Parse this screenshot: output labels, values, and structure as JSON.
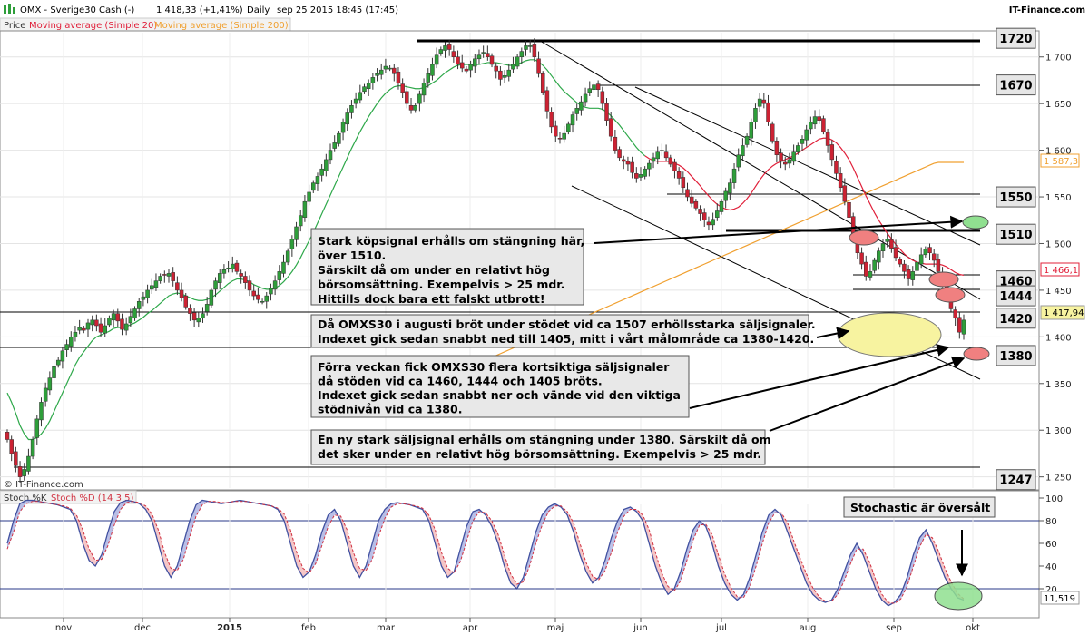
{
  "header": {
    "symbol": "OMX - Sverige30 Cash (-)",
    "quote": "1 418,33 (+1,41%)",
    "period": "Daily",
    "timestamp": "sep 25 2015 18:45 (17:45)",
    "brand": "IT-Finance.com"
  },
  "legend": {
    "price": "Price",
    "ma20": "Moving average (Simple 20)",
    "ma200": "Moving average (Simple 200)"
  },
  "stoch_legend": {
    "k": "Stoch %K",
    "d": "Stoch %D (14 3 5)"
  },
  "copyright": "© IT-Finance.com",
  "colors": {
    "up": "#2e9e3a",
    "down": "#cc2233",
    "ma20": "#e0203a",
    "ma200": "#f0a030",
    "stoch_k": "#4050a0",
    "stoch_d": "#d03040",
    "ellipse_yellow": "#f7f3a0",
    "ellipse_red": "#f08080",
    "ellipse_green": "#90e090"
  },
  "chart_data": {
    "type": "candlestick",
    "y_ticks": [
      "1 250",
      "1 300",
      "1 350",
      "1 400",
      "1 450",
      "1 500",
      "1 550",
      "1 600",
      "1 650",
      "1 700"
    ],
    "y_range": [
      1238,
      1726
    ],
    "x_months": [
      "nov",
      "dec",
      "2015",
      "feb",
      "mar",
      "apr",
      "maj",
      "jun",
      "jul",
      "aug",
      "sep",
      "okt"
    ],
    "last_price": "1 417,94",
    "ma200_value": "1 587,3",
    "ma20_value": "1 466,1",
    "levels": [
      {
        "value": 1720,
        "label": "1720"
      },
      {
        "value": 1670,
        "label": "1670"
      },
      {
        "value": 1550,
        "label": "1550"
      },
      {
        "value": 1510,
        "label": "1510"
      },
      {
        "value": 1460,
        "label": "1460"
      },
      {
        "value": 1444,
        "label": "1444"
      },
      {
        "value": 1420,
        "label": "1420"
      },
      {
        "value": 1380,
        "label": "1380"
      },
      {
        "value": 1247,
        "label": "1247"
      }
    ],
    "closes": [
      1290,
      1275,
      1262,
      1250,
      1258,
      1272,
      1290,
      1312,
      1330,
      1345,
      1356,
      1368,
      1375,
      1385,
      1392,
      1400,
      1405,
      1410,
      1407,
      1415,
      1418,
      1412,
      1405,
      1412,
      1420,
      1425,
      1417,
      1408,
      1414,
      1422,
      1430,
      1438,
      1443,
      1450,
      1455,
      1460,
      1465,
      1466,
      1468,
      1460,
      1450,
      1442,
      1432,
      1425,
      1418,
      1420,
      1425,
      1435,
      1450,
      1460,
      1468,
      1472,
      1474,
      1478,
      1470,
      1465,
      1458,
      1450,
      1444,
      1440,
      1438,
      1444,
      1452,
      1460,
      1470,
      1480,
      1492,
      1505,
      1518,
      1530,
      1545,
      1555,
      1565,
      1572,
      1580,
      1590,
      1600,
      1608,
      1618,
      1630,
      1640,
      1648,
      1655,
      1662,
      1668,
      1672,
      1678,
      1682,
      1686,
      1690,
      1688,
      1682,
      1672,
      1662,
      1650,
      1643,
      1648,
      1660,
      1672,
      1682,
      1692,
      1702,
      1708,
      1712,
      1708,
      1700,
      1692,
      1688,
      1685,
      1692,
      1698,
      1702,
      1705,
      1700,
      1692,
      1685,
      1676,
      1680,
      1686,
      1692,
      1700,
      1706,
      1712,
      1712,
      1700,
      1682,
      1662,
      1642,
      1625,
      1615,
      1612,
      1618,
      1628,
      1638,
      1645,
      1652,
      1660,
      1666,
      1670,
      1665,
      1650,
      1632,
      1615,
      1600,
      1592,
      1588,
      1585,
      1576,
      1570,
      1574,
      1580,
      1586,
      1592,
      1598,
      1600,
      1592,
      1585,
      1578,
      1570,
      1560,
      1550,
      1543,
      1538,
      1532,
      1525,
      1520,
      1526,
      1535,
      1545,
      1556,
      1565,
      1580,
      1595,
      1605,
      1615,
      1630,
      1645,
      1655,
      1650,
      1630,
      1610,
      1595,
      1588,
      1585,
      1590,
      1598,
      1605,
      1612,
      1622,
      1630,
      1636,
      1632,
      1620,
      1605,
      1590,
      1575,
      1560,
      1545,
      1528,
      1510,
      1490,
      1478,
      1465,
      1470,
      1482,
      1492,
      1500,
      1505,
      1495,
      1485,
      1478,
      1470,
      1462,
      1470,
      1480,
      1488,
      1494,
      1490,
      1482,
      1470,
      1458,
      1445,
      1430,
      1420,
      1405,
      1418
    ],
    "ma20": [
      1340,
      1330,
      1318,
      1305,
      1296,
      1290,
      1290,
      1292,
      1296,
      1302,
      1310,
      1320,
      1330,
      1340,
      1350,
      1360,
      1370,
      1378,
      1384,
      1390,
      1396,
      1400,
      1402,
      1404,
      1406,
      1409,
      1410,
      1410,
      1411,
      1413,
      1415,
      1418,
      1421,
      1425,
      1428,
      1432,
      1436,
      1440,
      1444,
      1446,
      1447,
      1446,
      1444,
      1442,
      1440,
      1439,
      1439,
      1440,
      1442,
      1445,
      1449,
      1453,
      1457,
      1460,
      1462,
      1462,
      1461,
      1459,
      1456,
      1454,
      1452,
      1451,
      1451,
      1452,
      1455,
      1459,
      1464,
      1470,
      1477,
      1485,
      1494,
      1503,
      1512,
      1522,
      1532,
      1542,
      1552,
      1562,
      1572,
      1582,
      1592,
      1602,
      1611,
      1620,
      1628,
      1636,
      1643,
      1650,
      1656,
      1661,
      1665,
      1668,
      1669,
      1669,
      1668,
      1667,
      1666,
      1666,
      1667,
      1669,
      1672,
      1675,
      1679,
      1683,
      1686,
      1689,
      1691,
      1692,
      1692,
      1692,
      1692,
      1692,
      1693,
      1694,
      1694,
      1694,
      1693,
      1692,
      1691,
      1691,
      1692,
      1694,
      1696,
      1697,
      1697,
      1695,
      1691,
      1686,
      1680,
      1674,
      1668,
      1663,
      1659,
      1655,
      1651,
      1648,
      1646,
      1645,
      1645,
      1645,
      1644,
      1641,
      1637,
      1632,
      1627,
      1621,
      1615,
      1609,
      1603,
      1598,
      1594,
      1591,
      1589,
      1588,
      1588,
      1588,
      1588,
      1586,
      1584,
      1581,
      1577,
      1572,
      1567,
      1562,
      1556,
      1551,
      1546,
      1542,
      1539,
      1537,
      1536,
      1537,
      1539,
      1543,
      1548,
      1554,
      1561,
      1568,
      1574,
      1579,
      1583,
      1586,
      1588,
      1590,
      1592,
      1594,
      1597,
      1600,
      1603,
      1606,
      1609,
      1612,
      1613,
      1613,
      1611,
      1608,
      1603,
      1597,
      1590,
      1581,
      1571,
      1561,
      1551,
      1542,
      1533,
      1525,
      1518,
      1511,
      1505,
      1499,
      1494,
      1489,
      1485,
      1482,
      1480,
      1479,
      1478,
      1478,
      1478,
      1478,
      1477,
      1475,
      1472,
      1469,
      1467,
      1466
    ],
    "ma200": [
      1378,
      1380,
      1382,
      1384,
      1386,
      1388,
      1390,
      1392,
      1394,
      1396,
      1398,
      1400,
      1402,
      1404,
      1406,
      1408,
      1410,
      1412,
      1414,
      1416,
      1418,
      1420,
      1422,
      1424,
      1426,
      1428,
      1430,
      1432,
      1434,
      1436,
      1438,
      1440,
      1442,
      1444,
      1446,
      1448,
      1450,
      1452,
      1454,
      1456,
      1458,
      1460,
      1462,
      1464,
      1466,
      1468,
      1470,
      1472,
      1474,
      1476,
      1478,
      1480,
      1482,
      1484,
      1486,
      1488,
      1490,
      1492,
      1494,
      1496,
      1498,
      1500,
      1502,
      1504,
      1506,
      1508,
      1510,
      1512,
      1514,
      1516,
      1518,
      1520,
      1522,
      1524,
      1526,
      1528,
      1530,
      1532,
      1534,
      1536,
      1538,
      1540,
      1542,
      1544,
      1546,
      1548,
      1550,
      1552,
      1554,
      1556,
      1558,
      1560,
      1562,
      1564,
      1566,
      1568,
      1570,
      1572,
      1574,
      1576,
      1578,
      1580,
      1582,
      1584,
      1586,
      1587,
      1587,
      1587,
      1587,
      1587,
      1587,
      1587
    ],
    "stoch_k": [
      60,
      80,
      95,
      98,
      98,
      97,
      96,
      95,
      94,
      92,
      90,
      80,
      60,
      45,
      40,
      50,
      70,
      88,
      96,
      98,
      97,
      95,
      90,
      80,
      60,
      40,
      30,
      40,
      60,
      80,
      94,
      98,
      97,
      96,
      95,
      96,
      97,
      98,
      97,
      96,
      95,
      94,
      93,
      90,
      80,
      60,
      40,
      30,
      35,
      50,
      70,
      85,
      90,
      80,
      60,
      40,
      30,
      40,
      60,
      80,
      90,
      95,
      96,
      95,
      94,
      92,
      90,
      80,
      60,
      40,
      30,
      35,
      55,
      75,
      88,
      90,
      85,
      75,
      60,
      40,
      25,
      20,
      30,
      50,
      70,
      85,
      92,
      95,
      92,
      85,
      70,
      50,
      35,
      25,
      30,
      45,
      65,
      80,
      90,
      92,
      88,
      80,
      60,
      40,
      25,
      15,
      20,
      35,
      55,
      72,
      80,
      75,
      60,
      40,
      25,
      15,
      10,
      15,
      30,
      50,
      70,
      85,
      90,
      85,
      70,
      55,
      40,
      25,
      15,
      10,
      8,
      10,
      20,
      35,
      50,
      60,
      50,
      35,
      20,
      10,
      5,
      8,
      15,
      30,
      50,
      65,
      72,
      60,
      45,
      30,
      20,
      12,
      10
    ],
    "stoch_d": [
      55,
      70,
      88,
      95,
      97,
      97,
      96,
      95,
      94,
      93,
      91,
      85,
      72,
      55,
      45,
      46,
      58,
      76,
      90,
      96,
      97,
      96,
      93,
      86,
      72,
      52,
      38,
      36,
      46,
      66,
      84,
      94,
      97,
      97,
      96,
      96,
      97,
      97,
      97,
      96,
      95,
      94,
      93,
      91,
      86,
      72,
      52,
      38,
      34,
      42,
      58,
      75,
      85,
      84,
      72,
      52,
      38,
      36,
      46,
      66,
      82,
      92,
      95,
      95,
      94,
      93,
      91,
      85,
      72,
      52,
      38,
      34,
      44,
      62,
      80,
      88,
      87,
      80,
      68,
      50,
      33,
      24,
      26,
      40,
      60,
      76,
      88,
      93,
      93,
      88,
      78,
      60,
      43,
      31,
      28,
      36,
      52,
      70,
      84,
      90,
      90,
      85,
      72,
      52,
      34,
      22,
      18,
      27,
      45,
      63,
      76,
      77,
      68,
      50,
      33,
      21,
      13,
      12,
      22,
      40,
      60,
      78,
      87,
      87,
      78,
      62,
      47,
      33,
      21,
      13,
      9,
      9,
      15,
      27,
      42,
      55,
      55,
      44,
      28,
      15,
      8,
      7,
      11,
      22,
      40,
      57,
      68,
      65,
      53,
      38,
      26,
      16,
      11
    ],
    "stoch_ticks": [
      "100",
      "80",
      "60",
      "40",
      "20"
    ],
    "stoch_last": "11,519",
    "stoch_levels": [
      80,
      20
    ]
  },
  "annotations": {
    "a1": [
      "Stark köpsignal erhålls om stängning här,",
      "över 1510.",
      "Särskilt då om under en relativt hög",
      "börsomsättning. Exempelvis > 25 mdr.",
      "Hittills dock bara ett falskt utbrott!"
    ],
    "a2": [
      "Då OMXS30 i augusti bröt under stödet vid ca 1507 erhöllsstarka säljsignaler.",
      "Indexet gick sedan snabbt ned till 1405, mitt i vårt målområde ca 1380-1420."
    ],
    "a3": [
      "Förra veckan fick OMXS30 flera kortsiktiga säljsignaler",
      "då stöden vid ca 1460, 1444 och 1405 bröts.",
      "Indexet gick sedan snabbt ner och vände vid den viktiga",
      "stödnivån vid ca 1380."
    ],
    "a4": [
      "En ny stark säljsignal erhålls om stängning under 1380. Särskilt då om",
      "det sker under en relativt hög börsomsättning. Exempelvis > 25 mdr."
    ],
    "stoch_note": "Stochastic är översålt"
  }
}
